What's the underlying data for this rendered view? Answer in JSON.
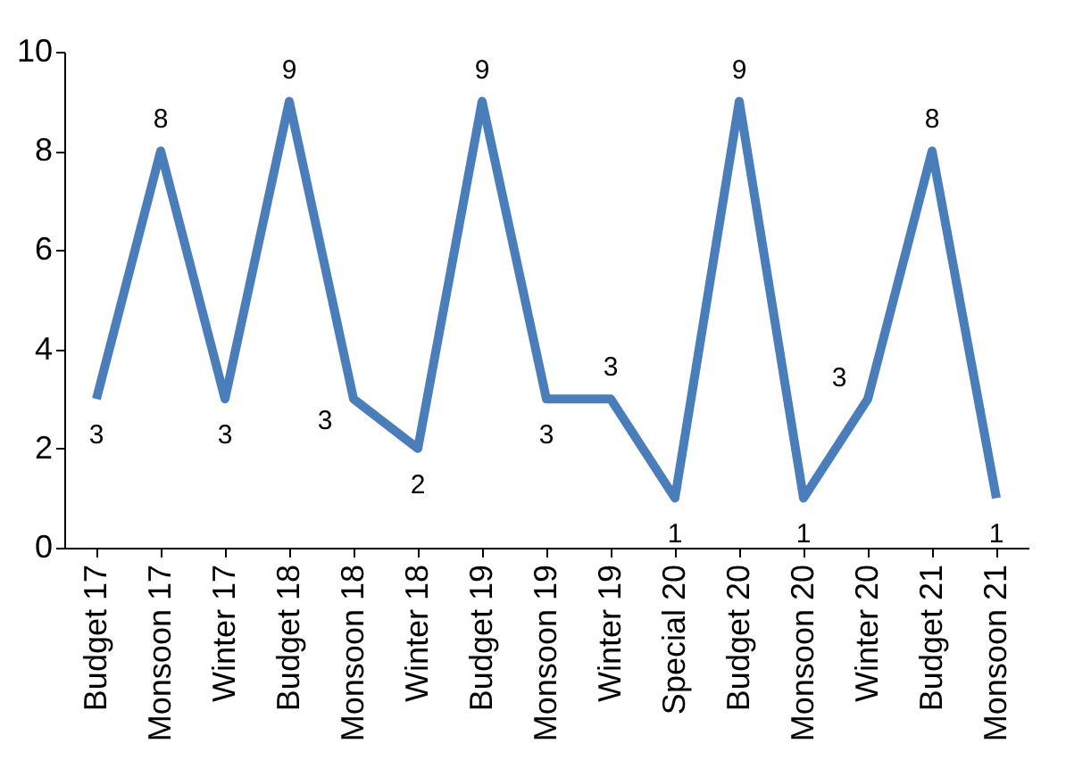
{
  "chart_data": {
    "type": "line",
    "categories": [
      "Budget 17",
      "Monsoon 17",
      "Winter 17",
      "Budget 18",
      "Monsoon 18",
      "Winter 18",
      "Budget 19",
      "Monsoon 19",
      "Winter 19",
      "Special  20",
      "Budget 20",
      "Monsoon 20",
      "Winter 20",
      "Budget 21",
      "Monsoon 21"
    ],
    "series": [
      {
        "color": "#4a7ebb",
        "values": [
          3,
          8,
          3,
          9,
          3,
          2,
          9,
          3,
          3,
          1,
          9,
          1,
          3,
          8,
          1
        ]
      }
    ],
    "ylim": [
      0,
      10
    ],
    "yticks": [
      0,
      2,
      4,
      6,
      8,
      10
    ],
    "grid": false,
    "legend": false,
    "data_labels": true,
    "marker": "none",
    "line_style": "solid"
  }
}
